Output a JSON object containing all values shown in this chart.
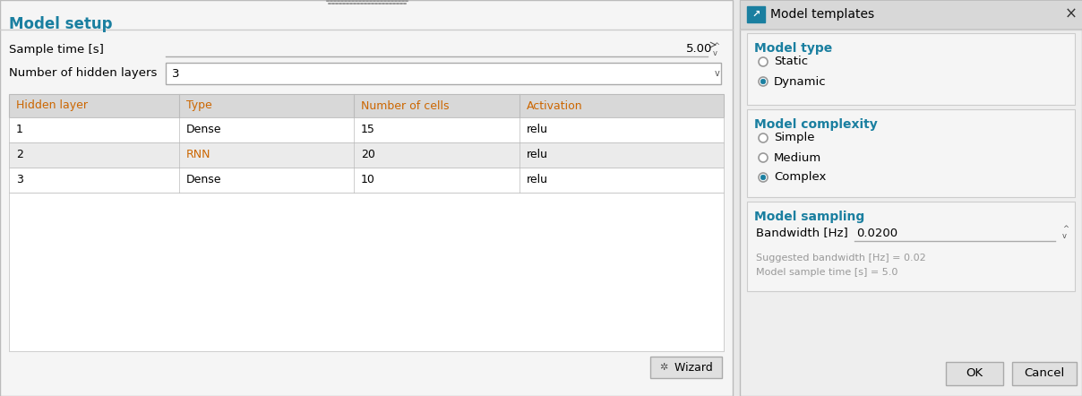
{
  "bg_color": "#e8e8e8",
  "left_panel": {
    "title": "Model setup",
    "title_color": "#1a7fa0",
    "sample_time_label": "Sample time [s]",
    "sample_time_value": "5.00",
    "hidden_layers_label": "Number of hidden layers",
    "hidden_layers_value": "3",
    "table_header_bg": "#d8d8d8",
    "table_row_bg_odd": "#ffffff",
    "table_row_bg_even": "#ebebeb",
    "table_border_color": "#bbbbbb",
    "col_headers": [
      "Hidden layer",
      "Type",
      "Number of cells",
      "Activation"
    ],
    "header_color": "#cc6600",
    "rows": [
      [
        "1",
        "Dense",
        "15",
        "relu"
      ],
      [
        "2",
        "RNN",
        "20",
        "relu"
      ],
      [
        "3",
        "Dense",
        "10",
        "relu"
      ]
    ],
    "rnn_color": "#cc6600",
    "wizard_btn_text": "  Wizard"
  },
  "right_panel": {
    "title": "Model templates",
    "close_btn": "×",
    "section_title_color": "#1a7fa0",
    "titlebar_bg": "#d8d8d8",
    "panel_bg": "#eeeeee",
    "section_bg": "#f5f5f5",
    "sections": [
      {
        "title": "Model type",
        "options": [
          "Static",
          "Dynamic"
        ],
        "selected": 1
      },
      {
        "title": "Model complexity",
        "options": [
          "Simple",
          "Medium",
          "Complex"
        ],
        "selected": 2
      },
      {
        "title": "Model sampling",
        "bw_label": "Bandwidth [Hz]",
        "bw_value": "0.0200",
        "notes": [
          "Suggested bandwidth [Hz] = 0.02",
          "Model sample time [s] = 5.0"
        ]
      }
    ],
    "ok_btn": "OK",
    "cancel_btn": "Cancel"
  }
}
